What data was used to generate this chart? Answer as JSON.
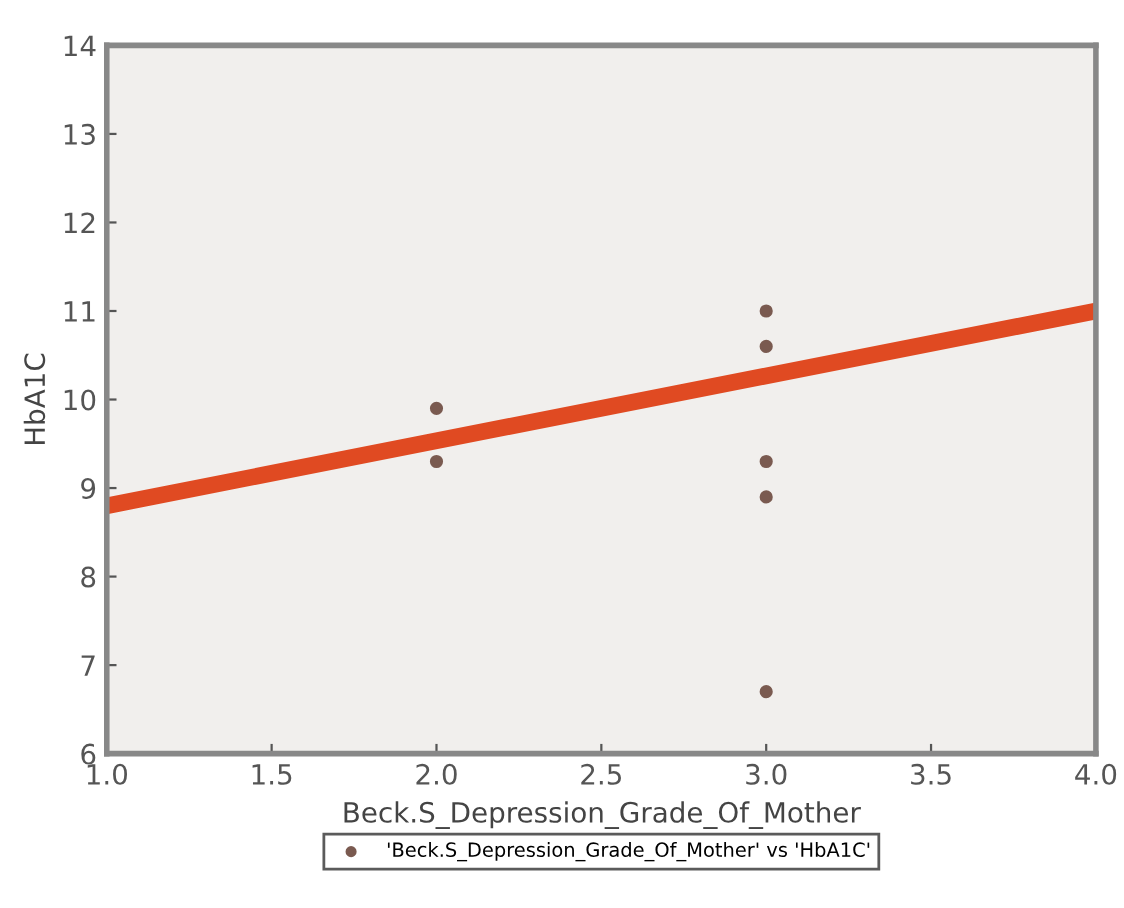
{
  "chart_data": {
    "type": "scatter",
    "xlabel": "Beck.S_Depression_Grade_Of_Mother",
    "ylabel": "HbA1C",
    "series": [
      {
        "name": "'Beck.S_Depression_Grade_Of_Mother' vs 'HbA1C'",
        "color": "#7a5a50",
        "x": [
          2,
          2,
          3,
          3,
          3,
          3,
          3
        ],
        "values": [
          9.9,
          9.3,
          11.0,
          10.6,
          9.3,
          8.9,
          6.7
        ],
        "marker": "circle"
      },
      {
        "type": "line",
        "color": "#e04a22",
        "x": [
          1,
          4
        ],
        "values": [
          8.8,
          11.0
        ]
      }
    ],
    "xlim": [
      1.0,
      4.0
    ],
    "xticks": [
      {
        "value": 1.0,
        "label": "1.0"
      },
      {
        "value": 1.5,
        "label": "1.5"
      },
      {
        "value": 2.0,
        "label": "2.0"
      },
      {
        "value": 2.5,
        "label": "2.5"
      },
      {
        "value": 3.0,
        "label": "3.0"
      },
      {
        "value": 3.5,
        "label": "3.5"
      },
      {
        "value": 4.0,
        "label": "4.0"
      }
    ],
    "ylim": [
      6,
      14
    ],
    "yticks": [
      6,
      7,
      8,
      9,
      10,
      11,
      12,
      13,
      14
    ],
    "grid": false,
    "legend": "bottom"
  }
}
